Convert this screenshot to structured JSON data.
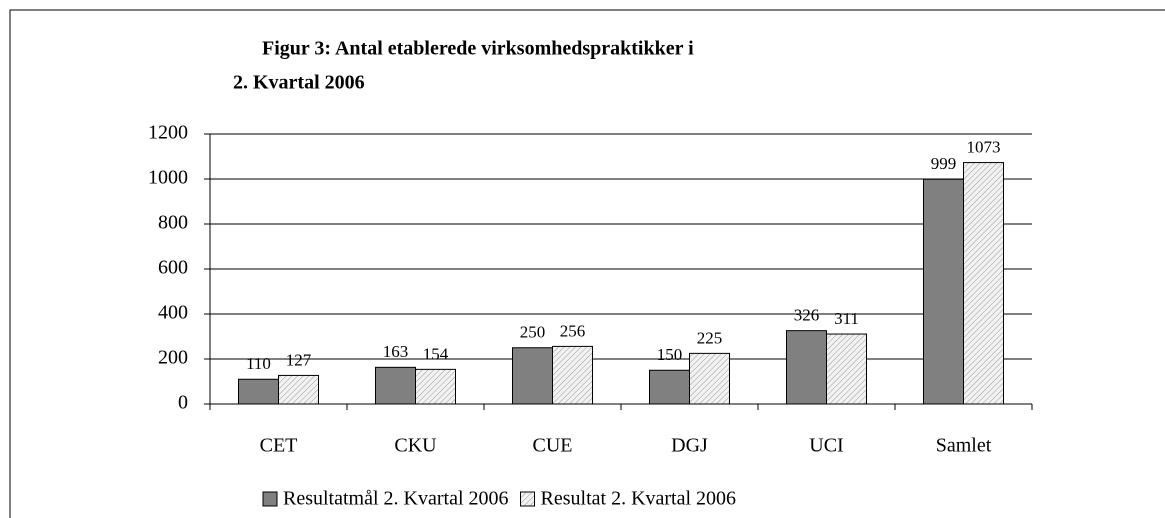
{
  "chart_data": {
    "type": "bar",
    "title": [
      "Figur 3: Antal etablerede virksomhedspraktikker i",
      "2. Kvartal 2006"
    ],
    "categories": [
      "CET",
      "CKU",
      "CUE",
      "DGJ",
      "UCI",
      "Samlet"
    ],
    "series": [
      {
        "name": "Resultatmål 2. Kvartal 2006",
        "color": "#808080",
        "values": [
          110,
          163,
          250,
          150,
          326,
          999
        ]
      },
      {
        "name": "Resultat 2. Kvartal 2006",
        "color": "#e6e6e6",
        "values": [
          127,
          154,
          256,
          225,
          311,
          1073
        ]
      }
    ],
    "ylim": [
      0,
      1200
    ],
    "yticks": [
      0,
      200,
      400,
      600,
      800,
      1000,
      1200
    ],
    "grid": true,
    "legend": "bottom"
  }
}
